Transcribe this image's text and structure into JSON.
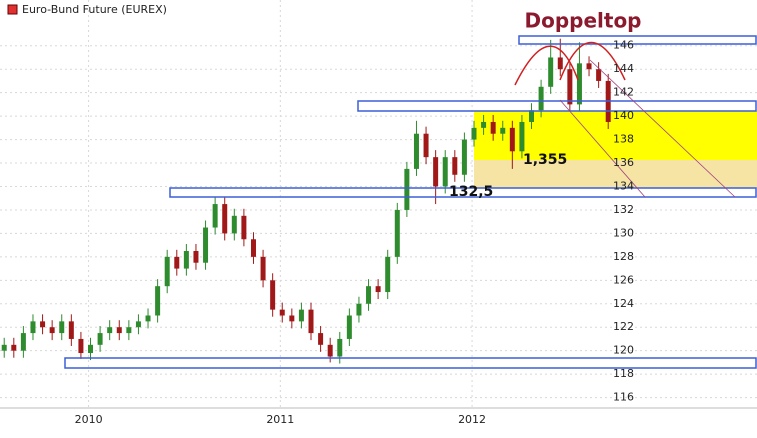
{
  "chart_data": {
    "type": "candlestick",
    "title": "Euro-Bund Future (EUREX)",
    "legend_color": "#e03030",
    "annotations": [
      "Doppeltop",
      "132,5",
      "1,355"
    ],
    "up_color": "#2e8b2e",
    "down_color": "#a01818",
    "grid": true,
    "xlim": [
      2009.538,
      2013.486
    ],
    "xticks": [
      2010,
      2011,
      2012
    ],
    "ylim": [
      114.9,
      149.9
    ],
    "yticks": [
      116,
      118,
      120,
      122,
      124,
      126,
      128,
      130,
      132,
      134,
      136,
      138,
      140,
      142,
      144,
      146
    ],
    "x": [
      2009.56,
      2009.61,
      2009.66,
      2009.71,
      2009.76,
      2009.81,
      2009.86,
      2009.91,
      2009.96,
      2010.01,
      2010.06,
      2010.11,
      2010.16,
      2010.21,
      2010.26,
      2010.31,
      2010.36,
      2010.41,
      2010.46,
      2010.51,
      2010.56,
      2010.61,
      2010.66,
      2010.71,
      2010.76,
      2010.81,
      2010.86,
      2010.91,
      2010.96,
      2011.01,
      2011.06,
      2011.11,
      2011.16,
      2011.21,
      2011.26,
      2011.31,
      2011.36,
      2011.41,
      2011.46,
      2011.51,
      2011.56,
      2011.61,
      2011.66,
      2011.71,
      2011.76,
      2011.81,
      2011.86,
      2011.91,
      2011.96,
      2012.01,
      2012.06,
      2012.11,
      2012.16,
      2012.21,
      2012.26,
      2012.31,
      2012.36,
      2012.41,
      2012.46,
      2012.51,
      2012.56,
      2012.61,
      2012.66,
      2012.71
    ],
    "open": [
      120,
      120.5,
      120,
      121.5,
      122.5,
      122,
      121.5,
      122.5,
      121,
      119.8,
      120.5,
      121.5,
      122,
      121.5,
      122,
      122.5,
      123,
      125.5,
      128,
      127,
      128.5,
      127.5,
      130.5,
      132.5,
      130,
      131.5,
      129.5,
      128,
      126,
      123.5,
      123,
      122.5,
      123.5,
      121.5,
      120.5,
      119.5,
      121,
      123,
      124,
      125.5,
      125,
      128,
      132,
      135.5,
      138.5,
      136.5,
      134,
      136.5,
      135,
      138,
      139,
      139.5,
      138.5,
      139,
      137,
      139.5,
      140.5,
      142.5,
      145,
      144,
      141,
      144.5,
      144,
      143
    ],
    "close": [
      120.5,
      120,
      121.5,
      122.5,
      122,
      121.5,
      122.5,
      121,
      119.8,
      120.5,
      121.5,
      122,
      121.5,
      122,
      122.5,
      123,
      125.5,
      128,
      127,
      128.5,
      127.5,
      130.5,
      132.5,
      130,
      131.5,
      129.5,
      128,
      126,
      123.5,
      123,
      122.5,
      123.5,
      121.5,
      120.5,
      119.5,
      121,
      123,
      124,
      125.5,
      125,
      128,
      132,
      135.5,
      138.5,
      136.5,
      134,
      136.5,
      135,
      138,
      139,
      139.5,
      138.5,
      139,
      137,
      139.5,
      140.5,
      142.5,
      145,
      144,
      141,
      144.5,
      144,
      143,
      139.5
    ],
    "high": [
      121.1,
      121.1,
      122.1,
      123.1,
      123.1,
      122.6,
      123.1,
      123.1,
      121.6,
      121.1,
      122.1,
      122.6,
      122.6,
      122.6,
      123.1,
      123.6,
      126.1,
      128.6,
      128.6,
      129.1,
      129.1,
      131.1,
      133.1,
      133.1,
      132.1,
      132.1,
      130.1,
      128.6,
      126.6,
      124.1,
      123.6,
      124.1,
      124.1,
      122.1,
      121.1,
      121.6,
      123.6,
      124.6,
      126.1,
      126.1,
      128.6,
      132.6,
      136.1,
      139.6,
      139.1,
      137.1,
      137.1,
      137.1,
      138.6,
      139.6,
      140.1,
      140.1,
      139.6,
      139.6,
      140.1,
      141.1,
      143.1,
      146.5,
      146.6,
      144.6,
      146.3,
      145.1,
      144.6,
      143.6
    ],
    "low": [
      119.4,
      119.4,
      119.4,
      120.9,
      121.4,
      120.9,
      120.9,
      120.4,
      119.3,
      119.2,
      119.9,
      120.9,
      120.9,
      120.9,
      121.4,
      121.9,
      122.4,
      124.9,
      126.4,
      126.4,
      126.9,
      126.9,
      129.9,
      129.4,
      129.4,
      128.9,
      127.4,
      125.4,
      122.9,
      122.4,
      121.9,
      121.9,
      120.9,
      119.9,
      119,
      118.9,
      120.4,
      122.4,
      123.4,
      124.4,
      124.4,
      127.4,
      131.4,
      134.9,
      135.9,
      132.5,
      133.4,
      134.4,
      134.4,
      137.4,
      138.4,
      137.9,
      137.9,
      135.5,
      136.4,
      138.9,
      139.9,
      141.9,
      143.4,
      140.4,
      140.4,
      143.4,
      142.4,
      138.9
    ]
  }
}
